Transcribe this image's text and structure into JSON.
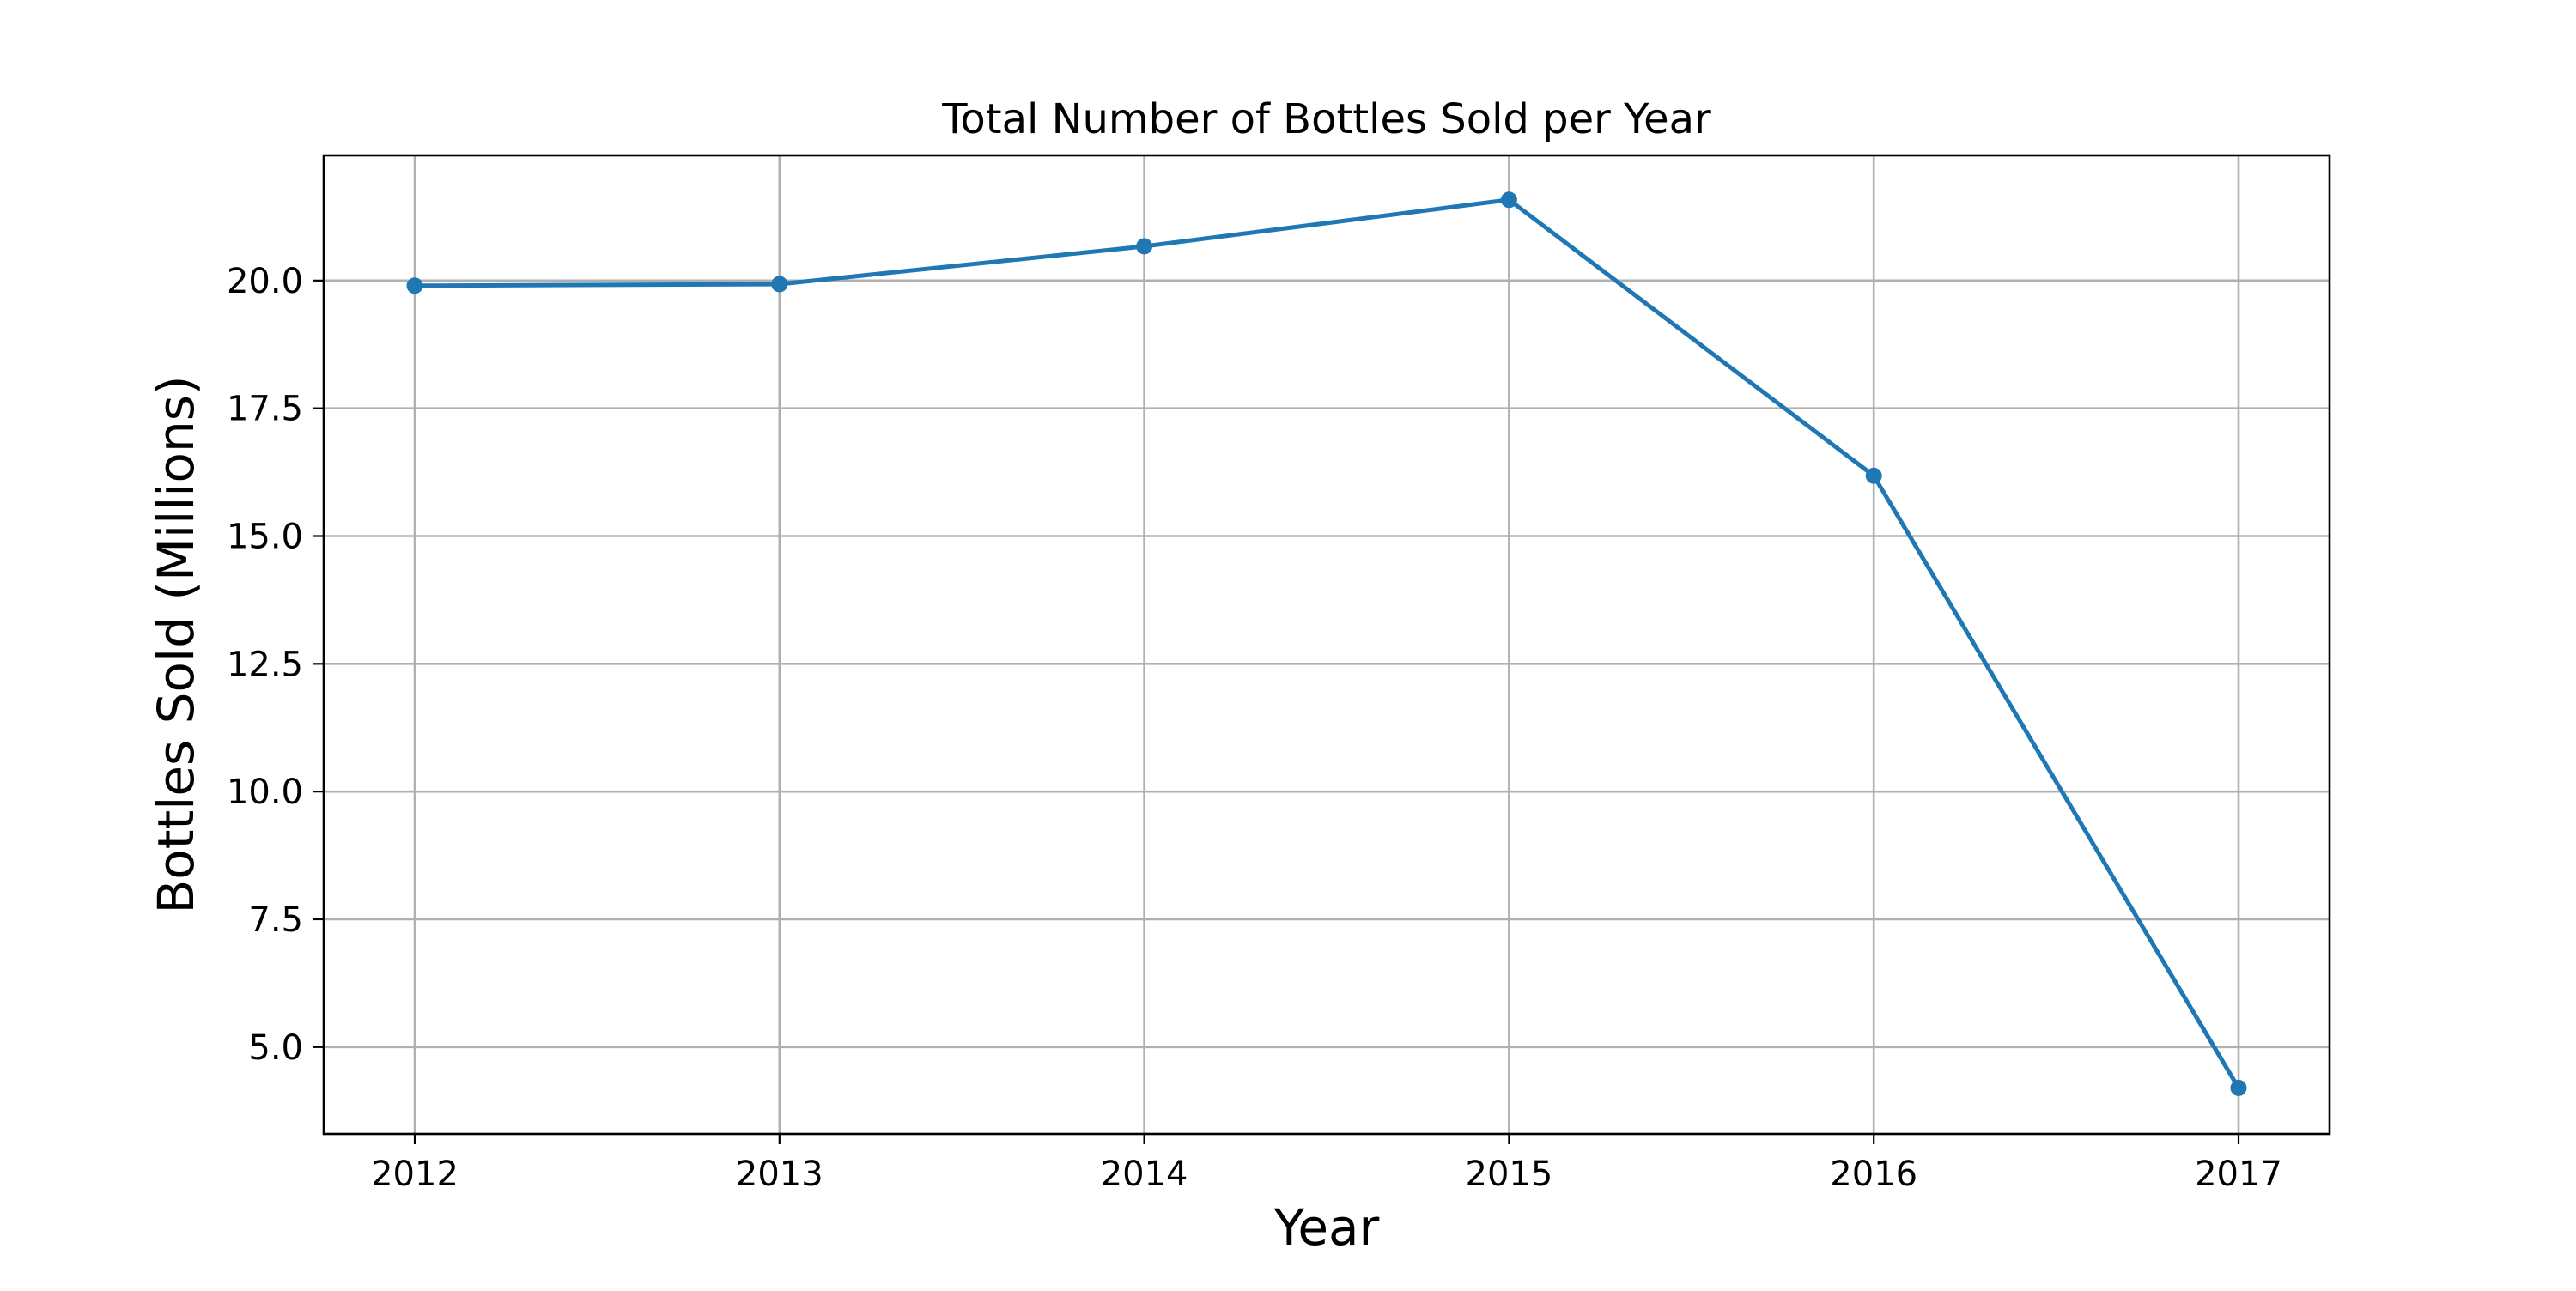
{
  "chart_data": {
    "type": "line",
    "title": "Total Number of Bottles Sold per Year",
    "xlabel": "Year",
    "ylabel": "Bottles Sold (Millions)",
    "categories": [
      "2012",
      "2013",
      "2014",
      "2015",
      "2016",
      "2017"
    ],
    "series": [
      {
        "values": [
          19.9,
          19.93,
          20.67,
          21.58,
          16.18,
          4.2
        ]
      }
    ],
    "ylim": [
      3.3,
      22.45
    ],
    "y_ticks": [
      5.0,
      7.5,
      10.0,
      12.5,
      15.0,
      17.5,
      20.0
    ],
    "y_tick_labels": [
      "5.0",
      "7.5",
      "10.0",
      "12.5",
      "15.0",
      "17.5",
      "20.0"
    ],
    "grid": true,
    "legend": "none",
    "colors": {
      "line": "#1f77b4",
      "grid": "#b0b0b0",
      "axes": "#000000"
    }
  }
}
